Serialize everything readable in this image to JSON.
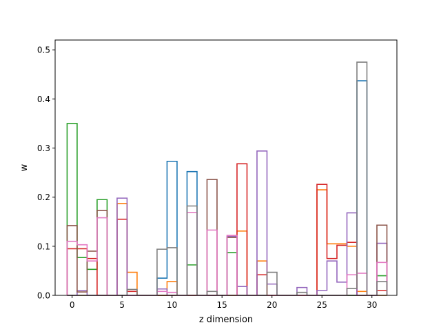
{
  "chart_data": {
    "type": "step",
    "title": "",
    "xlabel": "z dimension",
    "ylabel": "w",
    "xlim": [
      -1.7,
      32.5
    ],
    "ylim": [
      0,
      0.52
    ],
    "x_ticks": [
      0,
      5,
      10,
      15,
      20,
      25,
      30
    ],
    "x_tick_labels": [
      "0",
      "5",
      "10",
      "15",
      "20",
      "25",
      "30"
    ],
    "y_ticks": [
      0.0,
      0.1,
      0.2,
      0.3,
      0.4,
      0.5
    ],
    "y_tick_labels": [
      "0.0",
      "0.1",
      "0.2",
      "0.3",
      "0.4",
      "0.5"
    ],
    "grid": false,
    "legend": "none",
    "series": [
      {
        "color": "#1f77b4",
        "values": {
          "9": 0.035,
          "10": 0.273,
          "12": 0.252,
          "29": 0.437
        }
      },
      {
        "color": "#ff7f0e",
        "values": {
          "5": 0.187,
          "6": 0.047,
          "10": 0.028,
          "17": 0.131,
          "19": 0.07,
          "25": 0.215,
          "26": 0.105,
          "27": 0.105,
          "28": 0.1,
          "29": 0.008
        }
      },
      {
        "color": "#2ca02c",
        "values": {
          "0": 0.35,
          "1": 0.077,
          "2": 0.053,
          "3": 0.195,
          "12": 0.062,
          "16": 0.087,
          "31": 0.04
        }
      },
      {
        "color": "#d62728",
        "values": {
          "0": 0.095,
          "1": 0.095,
          "2": 0.075,
          "5": 0.155,
          "6": 0.008,
          "17": 0.268,
          "19": 0.042,
          "25": 0.226,
          "26": 0.075,
          "27": 0.102,
          "28": 0.108,
          "31": 0.01
        }
      },
      {
        "color": "#9467bd",
        "values": {
          "1": 0.01,
          "5": 0.198,
          "9": 0.013,
          "16": 0.12,
          "17": 0.018,
          "19": 0.294,
          "20": 0.023,
          "23": 0.016,
          "25": 0.01,
          "26": 0.07,
          "27": 0.027,
          "28": 0.168,
          "31": 0.106
        }
      },
      {
        "color": "#8c564b",
        "values": {
          "0": 0.142,
          "1": 0.007,
          "2": 0.09,
          "3": 0.173,
          "14": 0.236,
          "16": 0.118,
          "31": 0.143
        }
      },
      {
        "color": "#e377c2",
        "values": {
          "0": 0.11,
          "1": 0.103,
          "2": 0.07,
          "3": 0.158,
          "9": 0.008,
          "10": 0.006,
          "12": 0.169,
          "14": 0.133,
          "16": 0.122,
          "28": 0.042,
          "29": 0.045,
          "31": 0.067
        }
      },
      {
        "color": "#7f7f7f",
        "values": {
          "6": 0.012,
          "9": 0.094,
          "10": 0.097,
          "12": 0.182,
          "14": 0.008,
          "20": 0.047,
          "23": 0.006,
          "28": 0.014,
          "29": 0.475,
          "31": 0.028
        }
      }
    ]
  }
}
